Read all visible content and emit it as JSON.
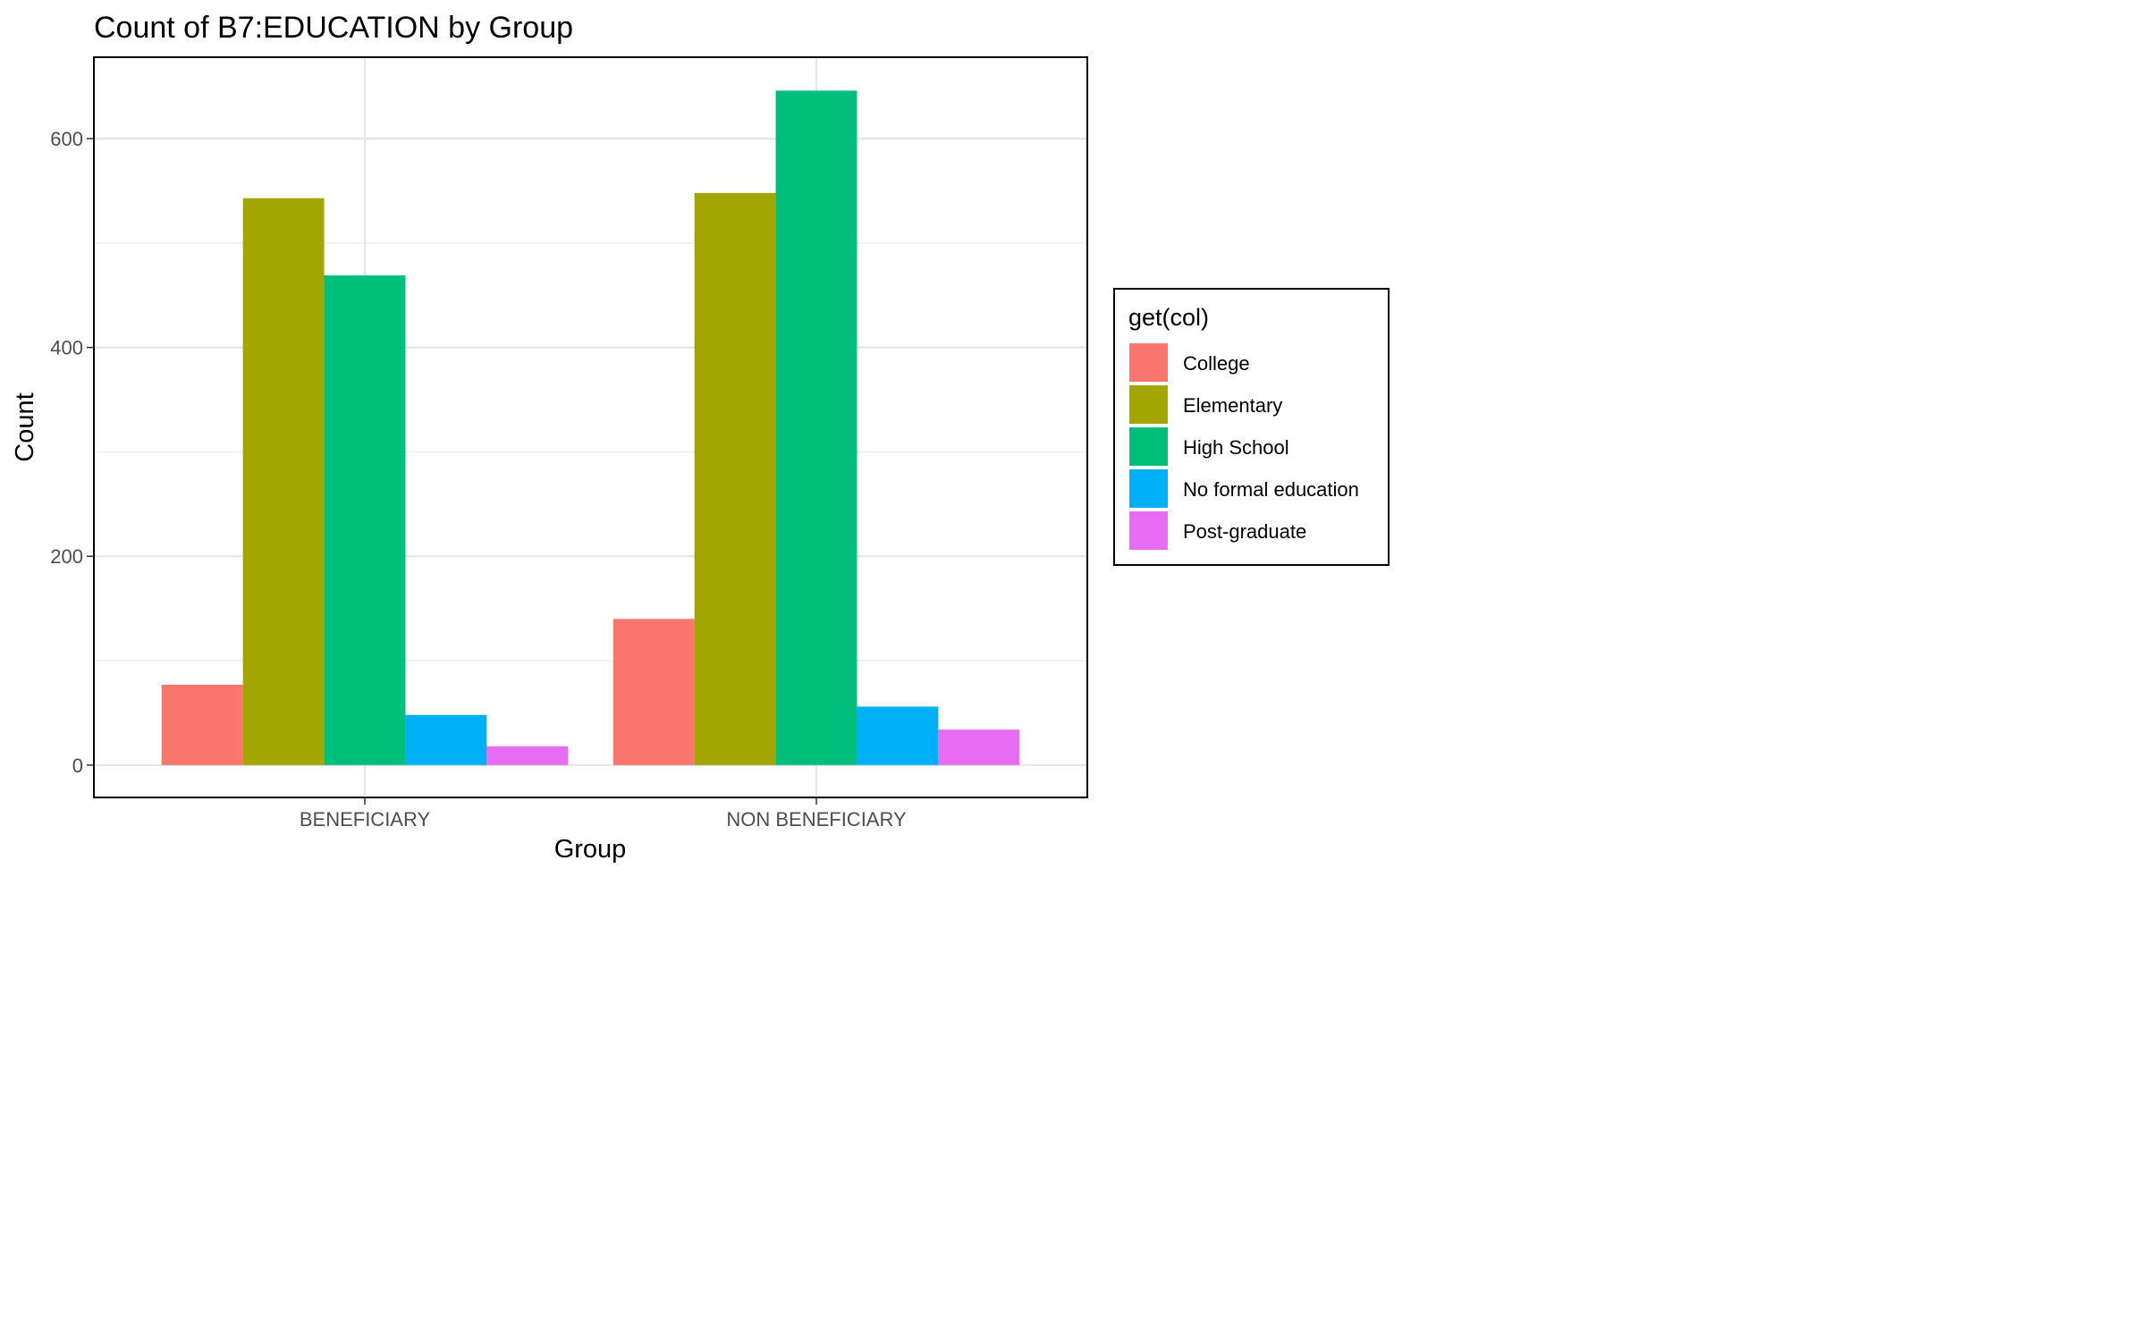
{
  "chart_data": {
    "type": "bar",
    "title": "Count of B7:EDUCATION by Group",
    "xlabel": "Group",
    "ylabel": "Count",
    "categories": [
      "BENEFICIARY",
      "NON BENEFICIARY"
    ],
    "ylim": [
      -31,
      678
    ],
    "yticks": [
      0,
      200,
      400,
      600
    ],
    "grid": true,
    "legend": {
      "title": "get(col)",
      "placement": "right"
    },
    "series": [
      {
        "name": "College",
        "color": "#F8766D",
        "values": [
          77,
          140
        ]
      },
      {
        "name": "Elementary",
        "color": "#A3A500",
        "values": [
          543,
          548
        ]
      },
      {
        "name": "High School",
        "color": "#00BF7D",
        "values": [
          469,
          646
        ]
      },
      {
        "name": "No formal education",
        "color": "#00B0F6",
        "values": [
          48,
          56
        ]
      },
      {
        "name": "Post-graduate",
        "color": "#E76BF3",
        "values": [
          18,
          34
        ]
      }
    ]
  }
}
